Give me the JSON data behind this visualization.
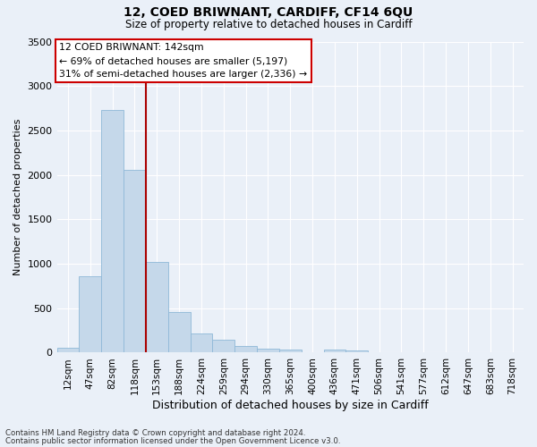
{
  "title": "12, COED BRIWNANT, CARDIFF, CF14 6QU",
  "subtitle": "Size of property relative to detached houses in Cardiff",
  "xlabel": "Distribution of detached houses by size in Cardiff",
  "ylabel": "Number of detached properties",
  "bar_color": "#c5d8ea",
  "bar_edge_color": "#8fb8d8",
  "background_color": "#eaf0f8",
  "grid_color": "#ffffff",
  "categories": [
    "12sqm",
    "47sqm",
    "82sqm",
    "118sqm",
    "153sqm",
    "188sqm",
    "224sqm",
    "259sqm",
    "294sqm",
    "330sqm",
    "365sqm",
    "400sqm",
    "436sqm",
    "471sqm",
    "506sqm",
    "541sqm",
    "577sqm",
    "612sqm",
    "647sqm",
    "683sqm",
    "718sqm"
  ],
  "bar_values": [
    55,
    855,
    2730,
    2060,
    1020,
    455,
    215,
    145,
    75,
    45,
    30,
    0,
    35,
    20,
    0,
    0,
    0,
    0,
    0,
    0,
    0
  ],
  "ylim": [
    0,
    3500
  ],
  "yticks": [
    0,
    500,
    1000,
    1500,
    2000,
    2500,
    3000,
    3500
  ],
  "vline_color": "#aa0000",
  "annotation_line1": "12 COED BRIWNANT: 142sqm",
  "annotation_line2": "← 69% of detached houses are smaller (5,197)",
  "annotation_line3": "31% of semi-detached houses are larger (2,336) →",
  "annotation_box_color": "#ffffff",
  "annotation_box_edge_color": "#cc0000",
  "footer_line1": "Contains HM Land Registry data © Crown copyright and database right 2024.",
  "footer_line2": "Contains public sector information licensed under the Open Government Licence v3.0."
}
